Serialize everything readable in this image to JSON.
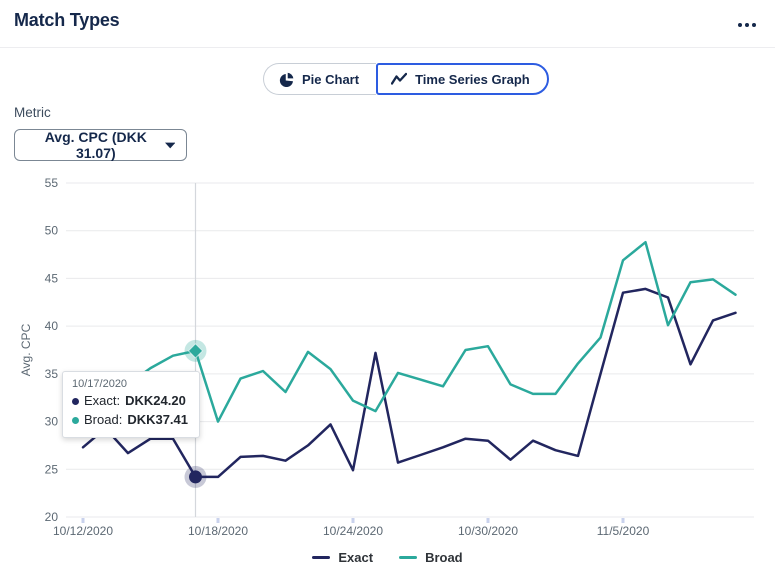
{
  "header": {
    "title": "Match Types",
    "menu_icon": "kebab-menu-icon"
  },
  "view_toggle": {
    "options": [
      {
        "label": "Pie Chart",
        "icon": "pie-chart-icon",
        "selected": false
      },
      {
        "label": "Time Series Graph",
        "icon": "line-chart-icon",
        "selected": true
      }
    ]
  },
  "metric": {
    "label": "Metric",
    "selected_value": "Avg. CPC (DKK 31.07)",
    "icon": "chevron-down-icon"
  },
  "colors": {
    "exact": "#22265F",
    "broad": "#2BA99C",
    "accent_blue": "#2D5CE1",
    "title_text": "#15284B",
    "axis_text": "#5C6873",
    "gridline": "#E9EAEC",
    "hover_line": "#D4D7DC",
    "tick_mark": "#C9D2EC"
  },
  "tooltip": {
    "date": "10/17/2020",
    "rows": [
      {
        "series": "Exact",
        "label": "Exact:",
        "value": "DKK24.20",
        "color": "#22265F"
      },
      {
        "series": "Broad",
        "label": "Broad:",
        "value": "DKK37.41",
        "color": "#2BA99C"
      }
    ]
  },
  "chart_data": {
    "type": "line",
    "title": "Match Types",
    "xlabel": "",
    "ylabel": "Avg. CPC",
    "ylim": [
      20,
      55
    ],
    "yticks": [
      20,
      25,
      30,
      35,
      40,
      45,
      50,
      55
    ],
    "grid": "horizontal",
    "legend_position": "bottom",
    "x": [
      "10/12/2020",
      "10/13/2020",
      "10/14/2020",
      "10/15/2020",
      "10/16/2020",
      "10/17/2020",
      "10/18/2020",
      "10/19/2020",
      "10/20/2020",
      "10/21/2020",
      "10/22/2020",
      "10/23/2020",
      "10/24/2020",
      "10/25/2020",
      "10/26/2020",
      "10/27/2020",
      "10/28/2020",
      "10/29/2020",
      "10/30/2020",
      "10/31/2020",
      "11/1/2020",
      "11/2/2020",
      "11/3/2020",
      "11/4/2020",
      "11/5/2020",
      "11/6/2020",
      "11/7/2020",
      "11/8/2020",
      "11/9/2020",
      "11/10/2020"
    ],
    "xticks": [
      {
        "label": "10/12/2020",
        "index": 0
      },
      {
        "label": "10/18/2020",
        "index": 6
      },
      {
        "label": "10/24/2020",
        "index": 12
      },
      {
        "label": "10/30/2020",
        "index": 18
      },
      {
        "label": "11/5/2020",
        "index": 24
      }
    ],
    "series": [
      {
        "name": "Exact",
        "color": "#22265F",
        "values": [
          27.3,
          29.3,
          26.7,
          28.2,
          28.2,
          24.2,
          24.2,
          26.3,
          26.4,
          25.9,
          27.5,
          29.7,
          24.9,
          37.2,
          25.7,
          26.5,
          27.3,
          28.2,
          28.0,
          26.0,
          28.0,
          27.0,
          26.4,
          35.0,
          43.5,
          43.9,
          43.0,
          36.0,
          40.6,
          41.4
        ]
      },
      {
        "name": "Broad",
        "color": "#2BA99C",
        "values": [
          33.5,
          34.3,
          33.9,
          35.6,
          36.9,
          37.41,
          30.0,
          34.5,
          35.3,
          33.1,
          37.3,
          35.5,
          32.2,
          31.1,
          35.1,
          34.4,
          33.7,
          37.5,
          37.9,
          33.9,
          32.9,
          32.9,
          36.1,
          38.8,
          46.9,
          48.8,
          40.1,
          44.6,
          44.9,
          43.3
        ]
      }
    ],
    "highlight": {
      "index": 5,
      "date": "10/17/2020",
      "exact_value": 24.2,
      "broad_value": 37.41
    }
  }
}
